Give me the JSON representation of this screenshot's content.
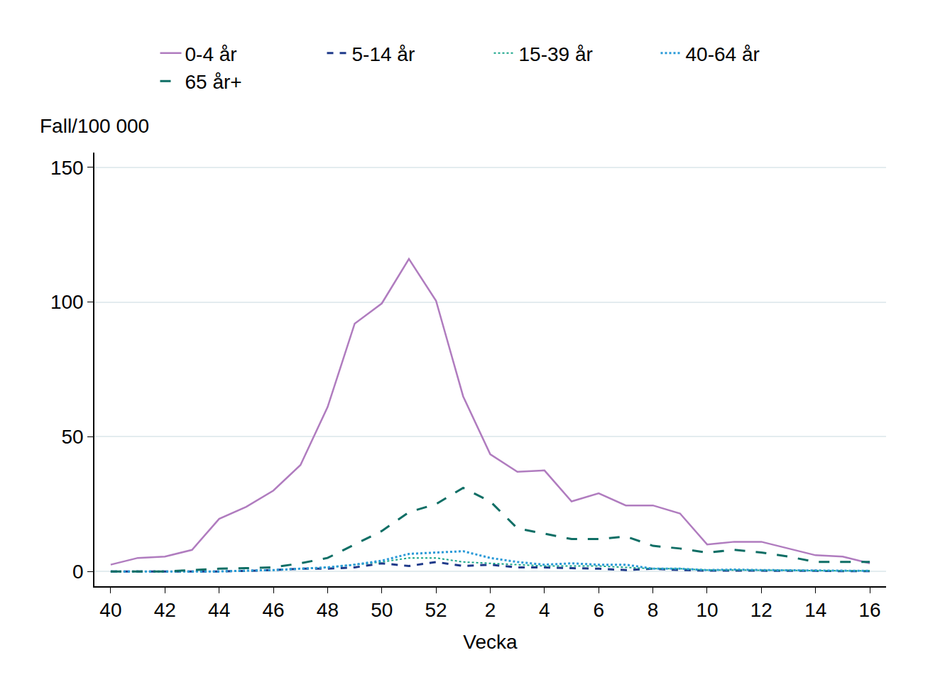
{
  "chart_data": {
    "type": "line",
    "x_label": "Vecka",
    "y_label": "Fall/100 000",
    "categories": [
      40,
      null,
      42,
      null,
      44,
      null,
      46,
      null,
      48,
      null,
      50,
      null,
      52,
      null,
      2,
      null,
      4,
      null,
      6,
      null,
      8,
      null,
      10,
      null,
      12,
      null,
      14,
      null,
      16
    ],
    "series": [
      {
        "name": "0-4 år",
        "color": "#b07cbf",
        "line_style": "solid",
        "values": [
          2.5,
          5,
          5.5,
          8,
          19.5,
          24,
          30,
          39.5,
          61,
          92,
          99.5,
          116,
          100.5,
          65,
          43.5,
          37,
          37.5,
          26,
          29,
          24.5,
          24.5,
          21.5,
          10,
          11,
          11,
          8.5,
          6,
          5.5,
          3
        ]
      },
      {
        "name": "5-14 år",
        "color": "#1f3a8a",
        "line_style": "dash",
        "values": [
          0,
          0,
          0,
          0,
          0,
          0.2,
          0.5,
          1,
          1,
          1.5,
          3,
          2,
          3.5,
          2,
          2.5,
          1.5,
          1.5,
          1.2,
          1,
          0.5,
          1,
          0.5,
          0.3,
          0.3,
          0.3,
          0.2,
          0.2,
          0.1,
          0.1
        ]
      },
      {
        "name": "15-39 år",
        "color": "#1aa58a",
        "line_style": "dot",
        "values": [
          0,
          0,
          0,
          0,
          0,
          0.2,
          0.5,
          1,
          1.5,
          2.5,
          3.5,
          5,
          5,
          3.5,
          3,
          2.5,
          2,
          2,
          2,
          1.5,
          1,
          1,
          0.5,
          0.5,
          0.5,
          0.4,
          0.3,
          0.2,
          0.2
        ]
      },
      {
        "name": "40-64 år",
        "color": "#2a9ad8",
        "line_style": "dot",
        "values": [
          0,
          0,
          0,
          0,
          0,
          0.3,
          0.5,
          1,
          1.5,
          2.5,
          4,
          6.5,
          7,
          7.5,
          5,
          3.5,
          2.5,
          3,
          2.5,
          2.5,
          1,
          1,
          0.5,
          0.7,
          0.5,
          0.4,
          0.3,
          0.2,
          0.2
        ]
      },
      {
        "name": "65 år+",
        "color": "#0e6e65",
        "line_style": "longdash",
        "values": [
          0,
          0,
          0,
          0.5,
          1,
          1.2,
          1.5,
          3,
          5,
          10,
          15,
          22,
          25,
          31,
          26,
          16,
          14,
          12,
          12,
          13,
          9.5,
          8.5,
          7,
          8,
          7,
          5.5,
          3.5,
          3.5,
          3.5
        ]
      }
    ],
    "ylim": [
      -5.5,
      155.5
    ],
    "yticks": [
      0,
      50,
      100,
      150
    ],
    "grid": true,
    "legend": "top"
  }
}
